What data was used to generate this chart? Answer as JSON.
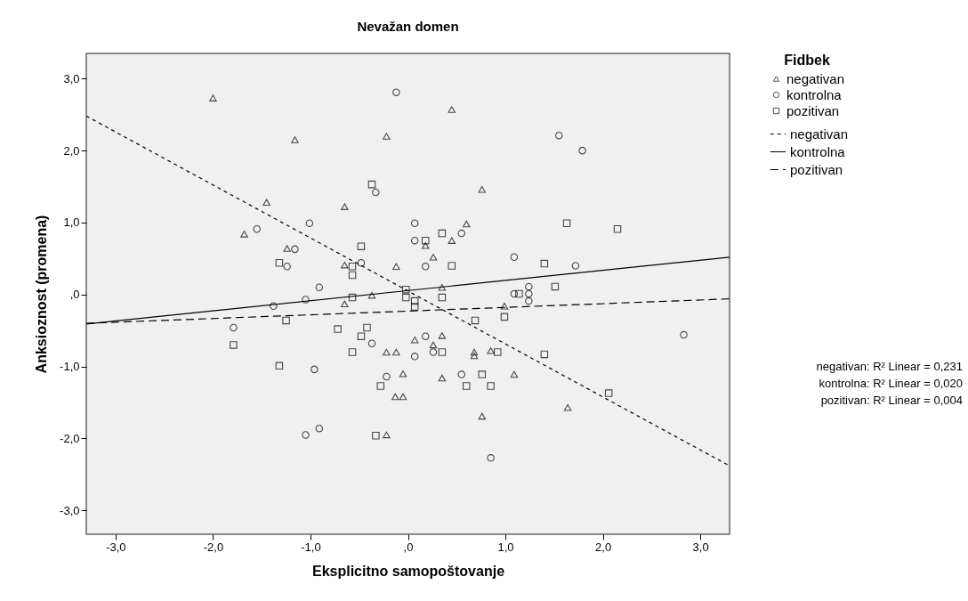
{
  "chart_data": {
    "type": "scatter",
    "title": "Nevažan domen",
    "xlabel": "Eksplicitno samopoštovanje",
    "ylabel": "Anksioznost (promena)",
    "legend_title": "Fidbek",
    "legend": "right",
    "grid": false,
    "xlim": [
      -3.3,
      3.3
    ],
    "ylim": [
      -3.33,
      3.35
    ],
    "xticks": [
      {
        "value": -3,
        "label": "-3,0"
      },
      {
        "value": -2,
        "label": "-2,0"
      },
      {
        "value": -1,
        "label": "-1,0"
      },
      {
        "value": 0,
        "label": ",0"
      },
      {
        "value": 1,
        "label": "1,0"
      },
      {
        "value": 2,
        "label": "2,0"
      },
      {
        "value": 3,
        "label": "3,0"
      }
    ],
    "yticks": [
      {
        "value": -3,
        "label": "-3,0"
      },
      {
        "value": -2,
        "label": "-2,0"
      },
      {
        "value": -1,
        "label": "-1,0"
      },
      {
        "value": 0,
        "label": ",0"
      },
      {
        "value": 1,
        "label": "1,0"
      },
      {
        "value": 2,
        "label": "2,0"
      },
      {
        "value": 3,
        "label": "3,0"
      }
    ],
    "series": [
      {
        "name": "negativan",
        "color": "#000000",
        "marker": "triangle",
        "x": [
          -2.0,
          -1.16,
          -1.45,
          -1.68,
          -0.22,
          -0.65,
          -1.24,
          -0.65,
          -0.12,
          -0.37,
          0.45,
          0.76,
          0.6,
          0.45,
          0.18,
          0.26,
          0.35,
          -0.65,
          -0.22,
          -0.12,
          -0.05,
          -0.13,
          -0.05,
          -0.22,
          0.99,
          0.07,
          0.35,
          0.26,
          0.68,
          0.68,
          0.85,
          0.35,
          1.09,
          0.76,
          1.64
        ],
        "values": [
          2.73,
          2.15,
          1.28,
          0.84,
          2.2,
          1.22,
          0.64,
          0.41,
          0.39,
          -0.01,
          2.57,
          1.46,
          0.98,
          0.75,
          0.68,
          0.52,
          0.1,
          -0.13,
          -0.8,
          -0.8,
          -1.1,
          -1.42,
          -1.42,
          -1.95,
          -0.16,
          -0.63,
          -0.57,
          -0.7,
          -0.8,
          -0.85,
          -0.78,
          -1.16,
          -1.11,
          -1.69,
          -1.57
        ]
      },
      {
        "name": "kontrolna",
        "color": "#000000",
        "marker": "circle",
        "x": [
          -0.12,
          -0.33,
          -1.01,
          -1.55,
          -1.16,
          -1.24,
          -0.48,
          -0.91,
          -1.05,
          -1.38,
          -1.79,
          -0.37,
          -0.96,
          -0.22,
          -1.05,
          -0.91,
          1.55,
          1.79,
          0.07,
          0.07,
          0.55,
          0.18,
          1.09,
          1.72,
          1.09,
          1.24,
          1.24,
          1.24,
          2.83,
          0.18,
          0.07,
          0.26,
          0.55,
          0.85
        ],
        "values": [
          2.81,
          1.42,
          0.99,
          0.91,
          0.63,
          0.39,
          0.44,
          0.1,
          -0.07,
          -0.16,
          -0.46,
          -0.68,
          -1.04,
          -1.14,
          -1.95,
          -1.86,
          2.21,
          2.0,
          0.99,
          0.75,
          0.85,
          0.39,
          0.52,
          0.4,
          0.01,
          0.11,
          0.01,
          -0.09,
          -0.56,
          -0.58,
          -0.86,
          -0.8,
          -1.11,
          -2.27
        ]
      },
      {
        "name": "pozitivan",
        "color": "#000000",
        "marker": "square",
        "x": [
          -0.37,
          -0.48,
          -1.32,
          -0.57,
          -0.57,
          -0.02,
          0.18,
          0.35,
          0.45,
          1.63,
          2.15,
          1.4,
          1.51,
          1.14,
          0.35,
          -0.57,
          -0.02,
          -1.25,
          -1.79,
          -0.72,
          -0.42,
          -0.48,
          -0.57,
          -1.32,
          -0.28,
          -0.33,
          0.07,
          0.07,
          0.69,
          0.99,
          0.35,
          0.92,
          1.4,
          0.76,
          0.6,
          0.85,
          2.06
        ],
        "values": [
          1.53,
          0.67,
          0.44,
          0.39,
          0.27,
          0.07,
          0.75,
          0.85,
          0.4,
          0.99,
          0.91,
          0.43,
          0.11,
          0.01,
          -0.04,
          -0.04,
          -0.04,
          -0.36,
          -0.7,
          -0.48,
          -0.46,
          -0.58,
          -0.8,
          -0.99,
          -1.27,
          -1.96,
          -0.09,
          -0.17,
          -0.36,
          -0.31,
          -0.8,
          -0.8,
          -0.83,
          -1.11,
          -1.27,
          -1.27,
          -1.37
        ]
      },
      {
        "name": "negativan",
        "type": "line",
        "color": "#000000",
        "line_style": "dotted",
        "x": [
          -3.3,
          3.3
        ],
        "values": [
          2.48,
          -2.38
        ]
      },
      {
        "name": "kontrolna",
        "type": "line",
        "color": "#000000",
        "line_style": "solid",
        "x": [
          -3.3,
          3.3
        ],
        "values": [
          -0.41,
          0.52
        ]
      },
      {
        "name": "pozitivan",
        "type": "line",
        "color": "#000000",
        "line_style": "dashed",
        "x": [
          -3.3,
          3.3
        ],
        "values": [
          -0.4,
          -0.06
        ]
      }
    ],
    "annotations": [
      "negativan: R² Linear = 0,231",
      "kontrolna: R² Linear = 0,020",
      "pozitivan: R² Linear = 0,004"
    ]
  }
}
